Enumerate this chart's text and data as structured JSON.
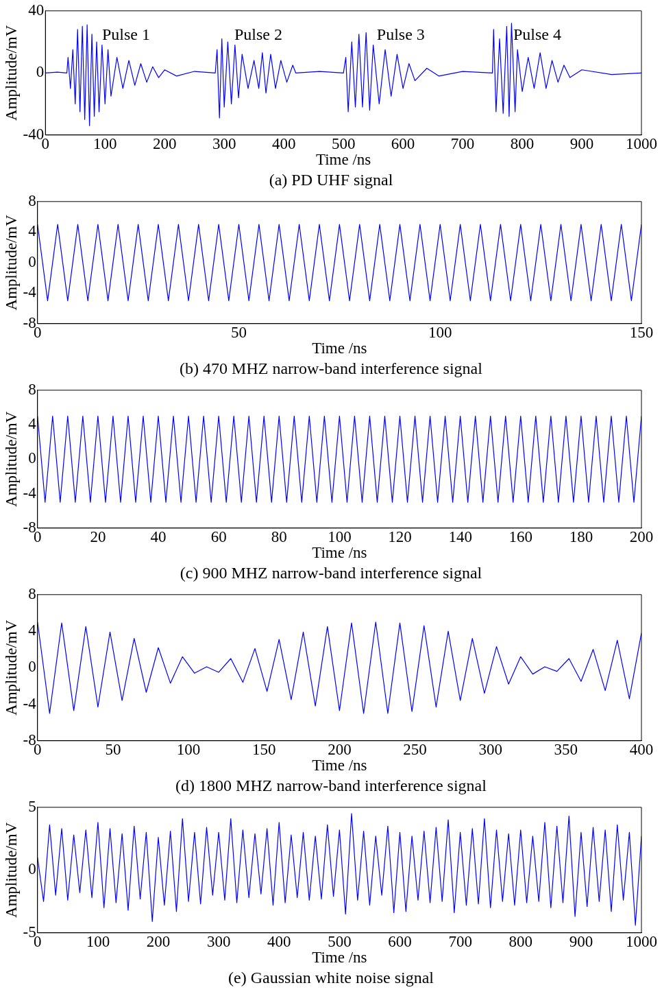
{
  "chart_data": [
    {
      "type": "line",
      "title": "(a) PD UHF signal",
      "xlabel": "Time /ns",
      "ylabel": "Amplitude/mV",
      "xlim": [
        0,
        1000
      ],
      "ylim": [
        -40,
        40
      ],
      "xticks": [
        0,
        100,
        200,
        300,
        400,
        500,
        600,
        700,
        800,
        900,
        1000
      ],
      "yticks": [
        -40,
        0,
        40
      ],
      "grid": false,
      "legend": false,
      "annotations": [
        "Pulse 1",
        "Pulse 2",
        "Pulse 3",
        "Pulse 4"
      ],
      "series": [
        {
          "color": "#0000ff",
          "x": [
            0,
            20,
            36,
            38,
            42,
            46,
            50,
            54,
            58,
            62,
            66,
            70,
            74,
            78,
            82,
            86,
            90,
            95,
            100,
            105,
            110,
            120,
            130,
            140,
            150,
            160,
            170,
            180,
            190,
            200,
            220,
            250,
            285,
            288,
            292,
            296,
            300,
            306,
            312,
            318,
            324,
            330,
            340,
            350,
            358,
            364,
            370,
            378,
            386,
            395,
            405,
            415,
            420,
            460,
            500,
            504,
            508,
            514,
            520,
            526,
            532,
            538,
            544,
            550,
            560,
            570,
            580,
            590,
            600,
            610,
            620,
            640,
            660,
            700,
            750,
            752,
            756,
            762,
            768,
            774,
            778,
            782,
            788,
            792,
            800,
            810,
            820,
            830,
            840,
            850,
            860,
            870,
            880,
            900,
            950,
            1000
          ],
          "values": [
            0,
            0.5,
            0,
            10,
            -10,
            15,
            -20,
            28,
            -25,
            30,
            -30,
            31,
            -34,
            25,
            -28,
            20,
            -25,
            18,
            -20,
            15,
            -15,
            10,
            -10,
            8,
            -8,
            6,
            -6,
            4,
            -3,
            2,
            -2,
            1,
            0,
            15,
            -29,
            22,
            -22,
            20,
            -20,
            18,
            -16,
            12,
            -10,
            8,
            -10,
            13,
            -13,
            12,
            -10,
            8,
            -6,
            5,
            0,
            1,
            0,
            10,
            -25,
            20,
            -22,
            25,
            -22,
            26,
            -24,
            18,
            -20,
            15,
            -15,
            12,
            -10,
            6,
            -5,
            3,
            -2,
            1,
            0,
            28,
            -25,
            22,
            -26,
            30,
            -28,
            32,
            -25,
            15,
            -12,
            10,
            -10,
            13,
            -10,
            8,
            -6,
            5,
            -3,
            2,
            -1,
            0
          ]
        }
      ]
    },
    {
      "type": "line",
      "title": "(b) 470 MHZ narrow-band interference signal",
      "xlabel": "Time /ns",
      "ylabel": "Amplitude/mV",
      "xlim": [
        0,
        150
      ],
      "ylim": [
        -8,
        8
      ],
      "xticks": [
        0,
        50,
        100,
        150
      ],
      "yticks": [
        -8,
        -4,
        0,
        4,
        8
      ],
      "grid": false,
      "legend": false,
      "series": [
        {
          "color": "#0000ff",
          "x": [
            0,
            2.5,
            5,
            7.5,
            10,
            12.5,
            15,
            17.5,
            20,
            22.5,
            25,
            27.5,
            30,
            32.5,
            35,
            37.5,
            40,
            42.5,
            45,
            47.5,
            50,
            52.5,
            55,
            57.5,
            60,
            62.5,
            65,
            67.5,
            70,
            72.5,
            75,
            77.5,
            80,
            82.5,
            85,
            87.5,
            90,
            92.5,
            95,
            97.5,
            100,
            102.5,
            105,
            107.5,
            110,
            112.5,
            115,
            117.5,
            120,
            122.5,
            125,
            127.5,
            130,
            132.5,
            135,
            137.5,
            140,
            142.5,
            145,
            147.5,
            150
          ],
          "values": [
            5,
            -5,
            5,
            -5,
            5,
            -5,
            5,
            -5,
            5,
            -5,
            5,
            -5,
            5,
            -5,
            5,
            -5,
            5,
            -5,
            5,
            -5,
            5,
            -5,
            5,
            -5,
            5,
            -5,
            5,
            -5,
            5,
            -5,
            5,
            -5,
            5,
            -5,
            5,
            -5,
            5,
            -5,
            5,
            -5,
            5,
            -5,
            5,
            -5,
            5,
            -5,
            5,
            -5,
            5,
            -5,
            5,
            -5,
            5,
            -5,
            5,
            -5,
            5,
            -5,
            5,
            -5,
            5
          ]
        }
      ]
    },
    {
      "type": "line",
      "title": "(c) 900 MHZ narrow-band interference signal",
      "xlabel": "Time /ns",
      "ylabel": "Amplitude/mV",
      "xlim": [
        0,
        200
      ],
      "ylim": [
        -8,
        8
      ],
      "xticks": [
        0,
        20,
        40,
        60,
        80,
        100,
        120,
        140,
        160,
        180,
        200
      ],
      "yticks": [
        -8,
        -4,
        0,
        4,
        8
      ],
      "grid": false,
      "legend": false,
      "series": [
        {
          "color": "#0000ff",
          "x": [
            0,
            2.5,
            5,
            7.5,
            10,
            12.5,
            15,
            17.5,
            20,
            22.5,
            25,
            27.5,
            30,
            32.5,
            35,
            37.5,
            40,
            42.5,
            45,
            47.5,
            50,
            52.5,
            55,
            57.5,
            60,
            62.5,
            65,
            67.5,
            70,
            72.5,
            75,
            77.5,
            80,
            82.5,
            85,
            87.5,
            90,
            92.5,
            95,
            97.5,
            100,
            102.5,
            105,
            107.5,
            110,
            112.5,
            115,
            117.5,
            120,
            122.5,
            125,
            127.5,
            130,
            132.5,
            135,
            137.5,
            140,
            142.5,
            145,
            147.5,
            150,
            152.5,
            155,
            157.5,
            160,
            162.5,
            165,
            167.5,
            170,
            172.5,
            175,
            177.5,
            180,
            182.5,
            185,
            187.5,
            190,
            192.5,
            195,
            197.5,
            200
          ],
          "values": [
            5,
            -5,
            5,
            -5,
            5,
            -5,
            5,
            -5,
            5,
            -5,
            5,
            -5,
            5,
            -5,
            5,
            -5,
            5,
            -5,
            5,
            -5,
            5,
            -5,
            5,
            -5,
            5,
            -5,
            5,
            -5,
            5,
            -5,
            5,
            -5,
            5,
            -5,
            5,
            -5,
            5,
            -5,
            5,
            -5,
            5,
            -5,
            5,
            -5,
            5,
            -5,
            5,
            -5,
            5,
            -5,
            5,
            -5,
            5,
            -5,
            5,
            -5,
            5,
            -5,
            5,
            -5,
            5,
            -5,
            5,
            -5,
            5,
            -5,
            5,
            -5,
            5,
            -5,
            5,
            -5,
            5,
            -5,
            5,
            -5,
            5,
            -5,
            5,
            -5,
            5
          ]
        }
      ]
    },
    {
      "type": "line",
      "title": "(d) 1800 MHZ narrow-band interference signal",
      "xlabel": "Time /ns",
      "ylabel": "Amplitude/mV",
      "xlim": [
        0,
        400
      ],
      "ylim": [
        -8,
        8
      ],
      "xticks": [
        0,
        50,
        100,
        150,
        200,
        250,
        300,
        350,
        400
      ],
      "yticks": [
        -8,
        -4,
        0,
        4,
        8
      ],
      "grid": false,
      "legend": false,
      "series": [
        {
          "color": "#0000ff",
          "x": [
            0,
            8,
            16,
            24,
            32,
            40,
            48,
            56,
            64,
            72,
            80,
            88,
            96,
            104,
            112,
            120,
            128,
            136,
            144,
            152,
            160,
            168,
            176,
            184,
            192,
            200,
            208,
            216,
            224,
            232,
            240,
            248,
            256,
            264,
            272,
            280,
            288,
            296,
            304,
            312,
            320,
            328,
            336,
            344,
            352,
            360,
            368,
            376,
            384,
            392,
            400
          ],
          "values": [
            5,
            -5,
            4.9,
            -4.7,
            4.5,
            -4.3,
            3.9,
            -3.6,
            3.2,
            -2.7,
            2.2,
            -1.7,
            1.2,
            -0.6,
            0.1,
            -0.5,
            1,
            -1.6,
            2.1,
            -2.6,
            3.1,
            -3.5,
            3.9,
            -4.2,
            4.5,
            -4.7,
            4.9,
            -5,
            5,
            -5,
            4.9,
            -4.8,
            4.6,
            -4.3,
            4,
            -3.6,
            3.2,
            -2.8,
            2.3,
            -1.8,
            1.2,
            -0.7,
            0.1,
            -0.4,
            1,
            -1.5,
            2,
            -2.5,
            3,
            -3.4,
            3.8
          ]
        }
      ]
    },
    {
      "type": "line",
      "title": "(e) Gaussian white noise signal",
      "xlabel": "Time /ns",
      "ylabel": "Amplitude/mV",
      "xlim": [
        0,
        1000
      ],
      "ylim": [
        -5,
        5
      ],
      "xticks": [
        0,
        100,
        200,
        300,
        400,
        500,
        600,
        700,
        800,
        900,
        1000
      ],
      "yticks": [
        -5,
        0,
        5
      ],
      "grid": false,
      "legend": false,
      "series": [
        {
          "color": "#0000ff",
          "x": [
            0,
            10,
            20,
            30,
            40,
            50,
            60,
            70,
            80,
            90,
            100,
            110,
            120,
            130,
            140,
            150,
            160,
            170,
            180,
            190,
            200,
            210,
            220,
            230,
            240,
            250,
            260,
            270,
            280,
            290,
            300,
            310,
            320,
            330,
            340,
            350,
            360,
            370,
            380,
            390,
            400,
            410,
            420,
            430,
            440,
            450,
            460,
            470,
            480,
            490,
            500,
            510,
            520,
            530,
            540,
            550,
            560,
            570,
            580,
            590,
            600,
            610,
            620,
            630,
            640,
            650,
            660,
            670,
            680,
            690,
            700,
            710,
            720,
            730,
            740,
            750,
            760,
            770,
            780,
            790,
            800,
            810,
            820,
            830,
            840,
            850,
            860,
            870,
            880,
            890,
            900,
            910,
            920,
            930,
            940,
            950,
            960,
            970,
            980,
            990,
            1000
          ],
          "values": [
            1,
            -2.5,
            3.6,
            -2,
            3.3,
            -2.4,
            2.8,
            -1.8,
            3.2,
            -2.2,
            3.8,
            -3,
            3.3,
            -2.6,
            2.9,
            -3.2,
            3.5,
            -2.3,
            3,
            -4.1,
            2.6,
            -2.8,
            3.1,
            -3.3,
            4.1,
            -2.5,
            3,
            -2.7,
            3.4,
            -2,
            3,
            -2.4,
            4.1,
            -2.6,
            3.2,
            -2.2,
            2.9,
            -1.9,
            3.3,
            -2.8,
            3.8,
            -2.6,
            2.8,
            -2.2,
            3,
            -2.4,
            2.7,
            -2.3,
            3.6,
            -2.1,
            3.2,
            -3.5,
            4.5,
            -2.4,
            3.1,
            -2.8,
            2.7,
            -2,
            3.5,
            -3.4,
            3,
            -3.3,
            2.7,
            -2.4,
            3.1,
            -2.6,
            3.4,
            -2.5,
            4,
            -3.4,
            3,
            -2.8,
            3.3,
            -2.7,
            4.1,
            -3,
            3.2,
            -2.5,
            2.9,
            -2.8,
            3.2,
            -2.6,
            2.7,
            -2.5,
            3.8,
            -3,
            3.5,
            -2.6,
            4.3,
            -3.7,
            3,
            -2.9,
            3.4,
            -2.5,
            3.2,
            -3.3,
            3.6,
            -2.4,
            3,
            -4.4,
            2.7
          ]
        }
      ]
    }
  ]
}
